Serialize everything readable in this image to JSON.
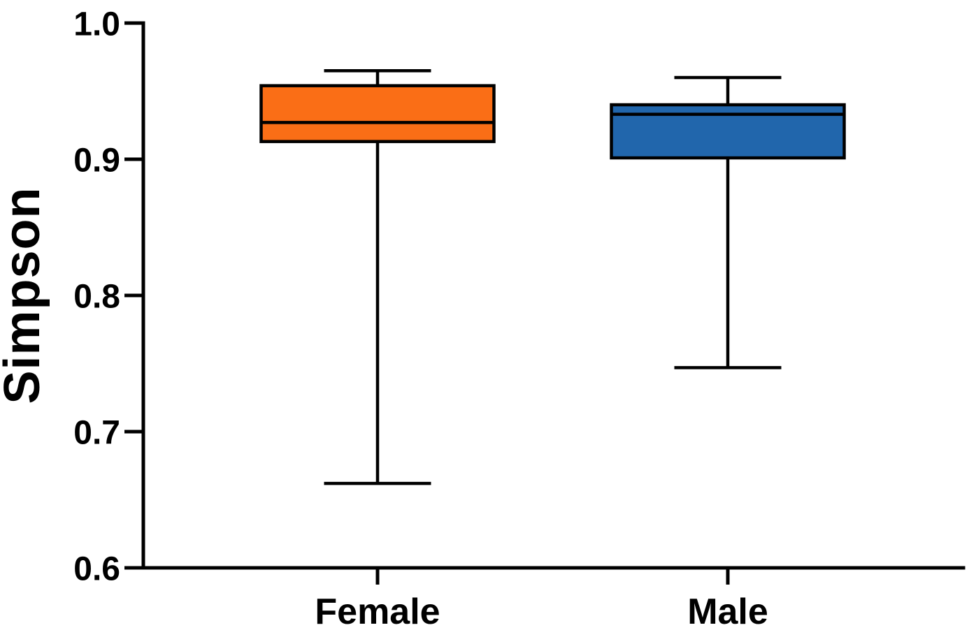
{
  "chart_data": {
    "type": "box",
    "title": "",
    "xlabel": "",
    "ylabel": "Simpson",
    "ylim": [
      0.6,
      1.0
    ],
    "yticks": [
      1.0,
      0.9,
      0.8,
      0.7,
      0.6
    ],
    "ytick_labels": [
      "1.0",
      "0.9",
      "0.8",
      "0.7",
      "0.6"
    ],
    "categories": [
      "Female",
      "Male"
    ],
    "series": [
      {
        "name": "Female",
        "min": 0.662,
        "q1": 0.913,
        "median": 0.927,
        "q3": 0.954,
        "max": 0.965,
        "fill_color": "#FA6E16"
      },
      {
        "name": "Male",
        "min": 0.747,
        "q1": 0.901,
        "median": 0.933,
        "q3": 0.94,
        "max": 0.96,
        "fill_color": "#2166AC"
      }
    ],
    "stroke_color": "#000000",
    "background_color": "#FFFFFF",
    "grid": false,
    "legend": false
  }
}
